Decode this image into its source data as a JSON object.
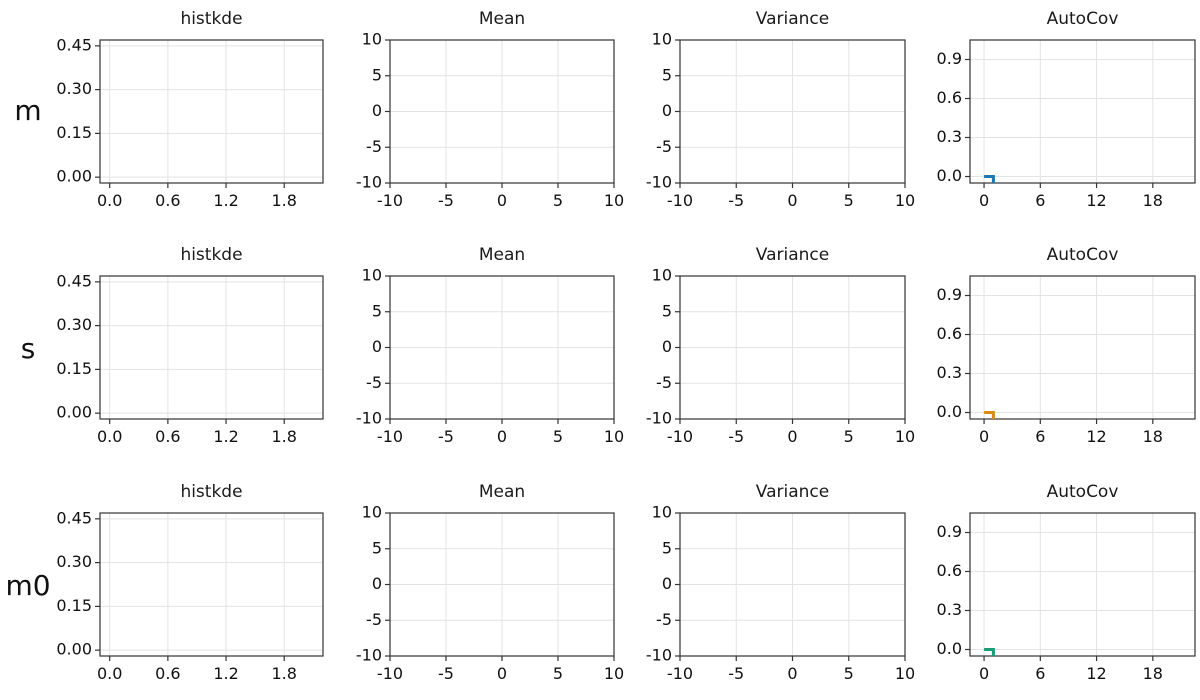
{
  "chart_data": [
    {
      "row_label": "m",
      "line_color": "#1f77b4",
      "panels": [
        {
          "type": "line",
          "title": "histkde",
          "xticks": [
            "0.0",
            "0.6",
            "1.2",
            "1.8"
          ],
          "yticks": [
            "0.00",
            "0.15",
            "0.30",
            "0.45"
          ],
          "xlim": [
            -0.1,
            2.2
          ],
          "ylim": [
            -0.02,
            0.47
          ],
          "series": []
        },
        {
          "type": "line",
          "title": "Mean",
          "xticks": [
            "-10",
            "-5",
            "0",
            "5",
            "10"
          ],
          "yticks": [
            "-10",
            "-5",
            "0",
            "5",
            "10"
          ],
          "xlim": [
            -10,
            10
          ],
          "ylim": [
            -10,
            10
          ],
          "series": []
        },
        {
          "type": "line",
          "title": "Variance",
          "xticks": [
            "-10",
            "-5",
            "0",
            "5",
            "10"
          ],
          "yticks": [
            "-10",
            "-5",
            "0",
            "5",
            "10"
          ],
          "xlim": [
            -10,
            10
          ],
          "ylim": [
            -10,
            10
          ],
          "series": []
        },
        {
          "type": "line",
          "title": "AutoCov",
          "xticks": [
            "0",
            "6",
            "12",
            "18"
          ],
          "yticks": [
            "0.0",
            "0.3",
            "0.6",
            "0.9"
          ],
          "xlim": [
            -1.5,
            22.5
          ],
          "ylim": [
            -0.05,
            1.05
          ],
          "series": [
            {
              "x": [
                0,
                1,
                1
              ],
              "y": [
                0.0,
                0.0,
                -0.05
              ]
            }
          ]
        }
      ]
    },
    {
      "row_label": "s",
      "line_color": "#e08a16",
      "panels": [
        {
          "type": "line",
          "title": "histkde",
          "xticks": [
            "0.0",
            "0.6",
            "1.2",
            "1.8"
          ],
          "yticks": [
            "0.00",
            "0.15",
            "0.30",
            "0.45"
          ],
          "xlim": [
            -0.1,
            2.2
          ],
          "ylim": [
            -0.02,
            0.47
          ],
          "series": []
        },
        {
          "type": "line",
          "title": "Mean",
          "xticks": [
            "-10",
            "-5",
            "0",
            "5",
            "10"
          ],
          "yticks": [
            "-10",
            "-5",
            "0",
            "5",
            "10"
          ],
          "xlim": [
            -10,
            10
          ],
          "ylim": [
            -10,
            10
          ],
          "series": []
        },
        {
          "type": "line",
          "title": "Variance",
          "xticks": [
            "-10",
            "-5",
            "0",
            "5",
            "10"
          ],
          "yticks": [
            "-10",
            "-5",
            "0",
            "5",
            "10"
          ],
          "xlim": [
            -10,
            10
          ],
          "ylim": [
            -10,
            10
          ],
          "series": []
        },
        {
          "type": "line",
          "title": "AutoCov",
          "xticks": [
            "0",
            "6",
            "12",
            "18"
          ],
          "yticks": [
            "0.0",
            "0.3",
            "0.6",
            "0.9"
          ],
          "xlim": [
            -1.5,
            22.5
          ],
          "ylim": [
            -0.05,
            1.05
          ],
          "series": [
            {
              "x": [
                0,
                1,
                1
              ],
              "y": [
                0.0,
                0.0,
                -0.05
              ]
            }
          ]
        }
      ]
    },
    {
      "row_label": "m0",
      "line_color": "#1a9e77",
      "panels": [
        {
          "type": "line",
          "title": "histkde",
          "xticks": [
            "0.0",
            "0.6",
            "1.2",
            "1.8"
          ],
          "yticks": [
            "0.00",
            "0.15",
            "0.30",
            "0.45"
          ],
          "xlim": [
            -0.1,
            2.2
          ],
          "ylim": [
            -0.02,
            0.47
          ],
          "series": []
        },
        {
          "type": "line",
          "title": "Mean",
          "xticks": [
            "-10",
            "-5",
            "0",
            "5",
            "10"
          ],
          "yticks": [
            "-10",
            "-5",
            "0",
            "5",
            "10"
          ],
          "xlim": [
            -10,
            10
          ],
          "ylim": [
            -10,
            10
          ],
          "series": []
        },
        {
          "type": "line",
          "title": "Variance",
          "xticks": [
            "-10",
            "-5",
            "0",
            "5",
            "10"
          ],
          "yticks": [
            "-10",
            "-5",
            "0",
            "5",
            "10"
          ],
          "xlim": [
            -10,
            10
          ],
          "ylim": [
            -10,
            10
          ],
          "series": []
        },
        {
          "type": "line",
          "title": "AutoCov",
          "xticks": [
            "0",
            "6",
            "12",
            "18"
          ],
          "yticks": [
            "0.0",
            "0.3",
            "0.6",
            "0.9"
          ],
          "xlim": [
            -1.5,
            22.5
          ],
          "ylim": [
            -0.05,
            1.05
          ],
          "series": [
            {
              "x": [
                0,
                1,
                1
              ],
              "y": [
                0.0,
                0.0,
                -0.05
              ]
            }
          ]
        }
      ]
    }
  ]
}
